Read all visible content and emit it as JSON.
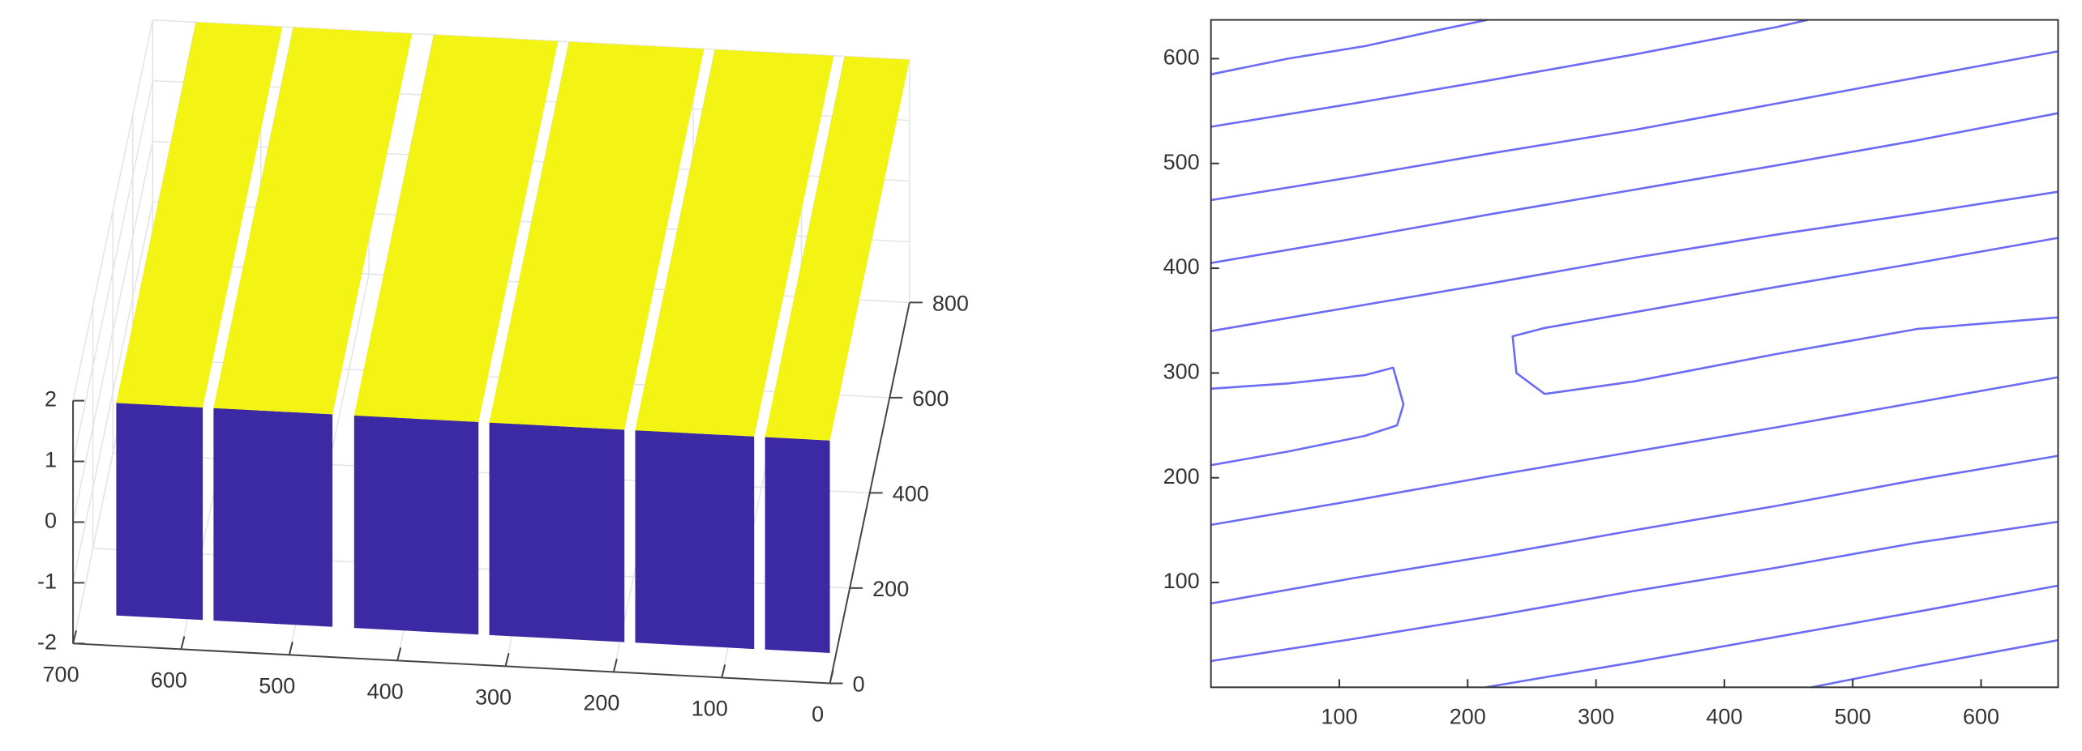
{
  "chart_data": [
    {
      "type": "surface",
      "xlim": [
        0,
        700
      ],
      "xticks": [
        0,
        100,
        200,
        300,
        400,
        500,
        600,
        700
      ],
      "ylim": [
        0,
        800
      ],
      "yticks": [
        0,
        200,
        400,
        600,
        800
      ],
      "zlim": [
        -2,
        2
      ],
      "zticks": [
        -2,
        -1,
        0,
        1,
        2
      ],
      "grid": true,
      "floor": -1.5,
      "top_color": "#f4f414",
      "side_color": "#3b2aa3",
      "stripes": [
        {
          "x": [
            0,
            60
          ],
          "z": 2
        },
        {
          "x": [
            70,
            180
          ],
          "z": 2
        },
        {
          "x": [
            190,
            315
          ],
          "z": 2
        },
        {
          "x": [
            325,
            440
          ],
          "z": 2
        },
        {
          "x": [
            460,
            570
          ],
          "z": 2
        },
        {
          "x": [
            580,
            660
          ],
          "z": 2
        }
      ]
    },
    {
      "type": "contour",
      "xlim": [
        0,
        660
      ],
      "xticks": [
        100,
        200,
        300,
        400,
        500,
        600
      ],
      "ylim": [
        0,
        637
      ],
      "yticks": [
        100,
        200,
        300,
        400,
        500,
        600
      ],
      "color": "#6b6bf5",
      "series": [
        {
          "x": [
            0,
            60,
            120,
            180,
            215
          ],
          "values": [
            585,
            600,
            612,
            628,
            637
          ]
        },
        {
          "x": [
            0,
            110,
            220,
            330,
            440,
            465
          ],
          "values": [
            535,
            557,
            580,
            604,
            630,
            637
          ]
        },
        {
          "x": [
            0,
            110,
            220,
            330,
            440,
            550,
            660
          ],
          "values": [
            465,
            487,
            510,
            532,
            557,
            582,
            607
          ]
        },
        {
          "x": [
            0,
            110,
            220,
            330,
            440,
            550,
            660
          ],
          "values": [
            405,
            428,
            452,
            475,
            498,
            522,
            548
          ]
        },
        {
          "x": [
            0,
            110,
            220,
            330,
            440,
            550,
            660
          ],
          "values": [
            340,
            363,
            386,
            410,
            432,
            452,
            473
          ]
        },
        {
          "x": [
            0,
            60,
            120,
            142,
            150,
            145,
            120,
            60,
            0
          ],
          "values": [
            285,
            290,
            298,
            305,
            270,
            250,
            240,
            225,
            212
          ]
        },
        {
          "x": [
            660,
            550,
            440,
            330,
            260,
            235,
            238,
            260,
            330,
            440,
            550,
            660
          ],
          "values": [
            429,
            405,
            382,
            358,
            343,
            335,
            300,
            280,
            292,
            318,
            342,
            353
          ]
        },
        {
          "x": [
            0,
            110,
            220,
            330,
            440,
            550,
            660
          ],
          "values": [
            155,
            178,
            202,
            225,
            248,
            272,
            296
          ]
        },
        {
          "x": [
            0,
            110,
            220,
            330,
            440,
            550,
            660
          ],
          "values": [
            80,
            104,
            126,
            150,
            173,
            198,
            221
          ]
        },
        {
          "x": [
            0,
            110,
            220,
            330,
            440,
            550,
            660
          ],
          "values": [
            25,
            46,
            68,
            92,
            114,
            138,
            158
          ]
        },
        {
          "x": [
            214,
            330,
            440,
            550,
            660
          ],
          "values": [
            0,
            24,
            48,
            72,
            97
          ]
        },
        {
          "x": [
            468,
            550,
            660
          ],
          "values": [
            0,
            20,
            45
          ]
        }
      ]
    }
  ]
}
